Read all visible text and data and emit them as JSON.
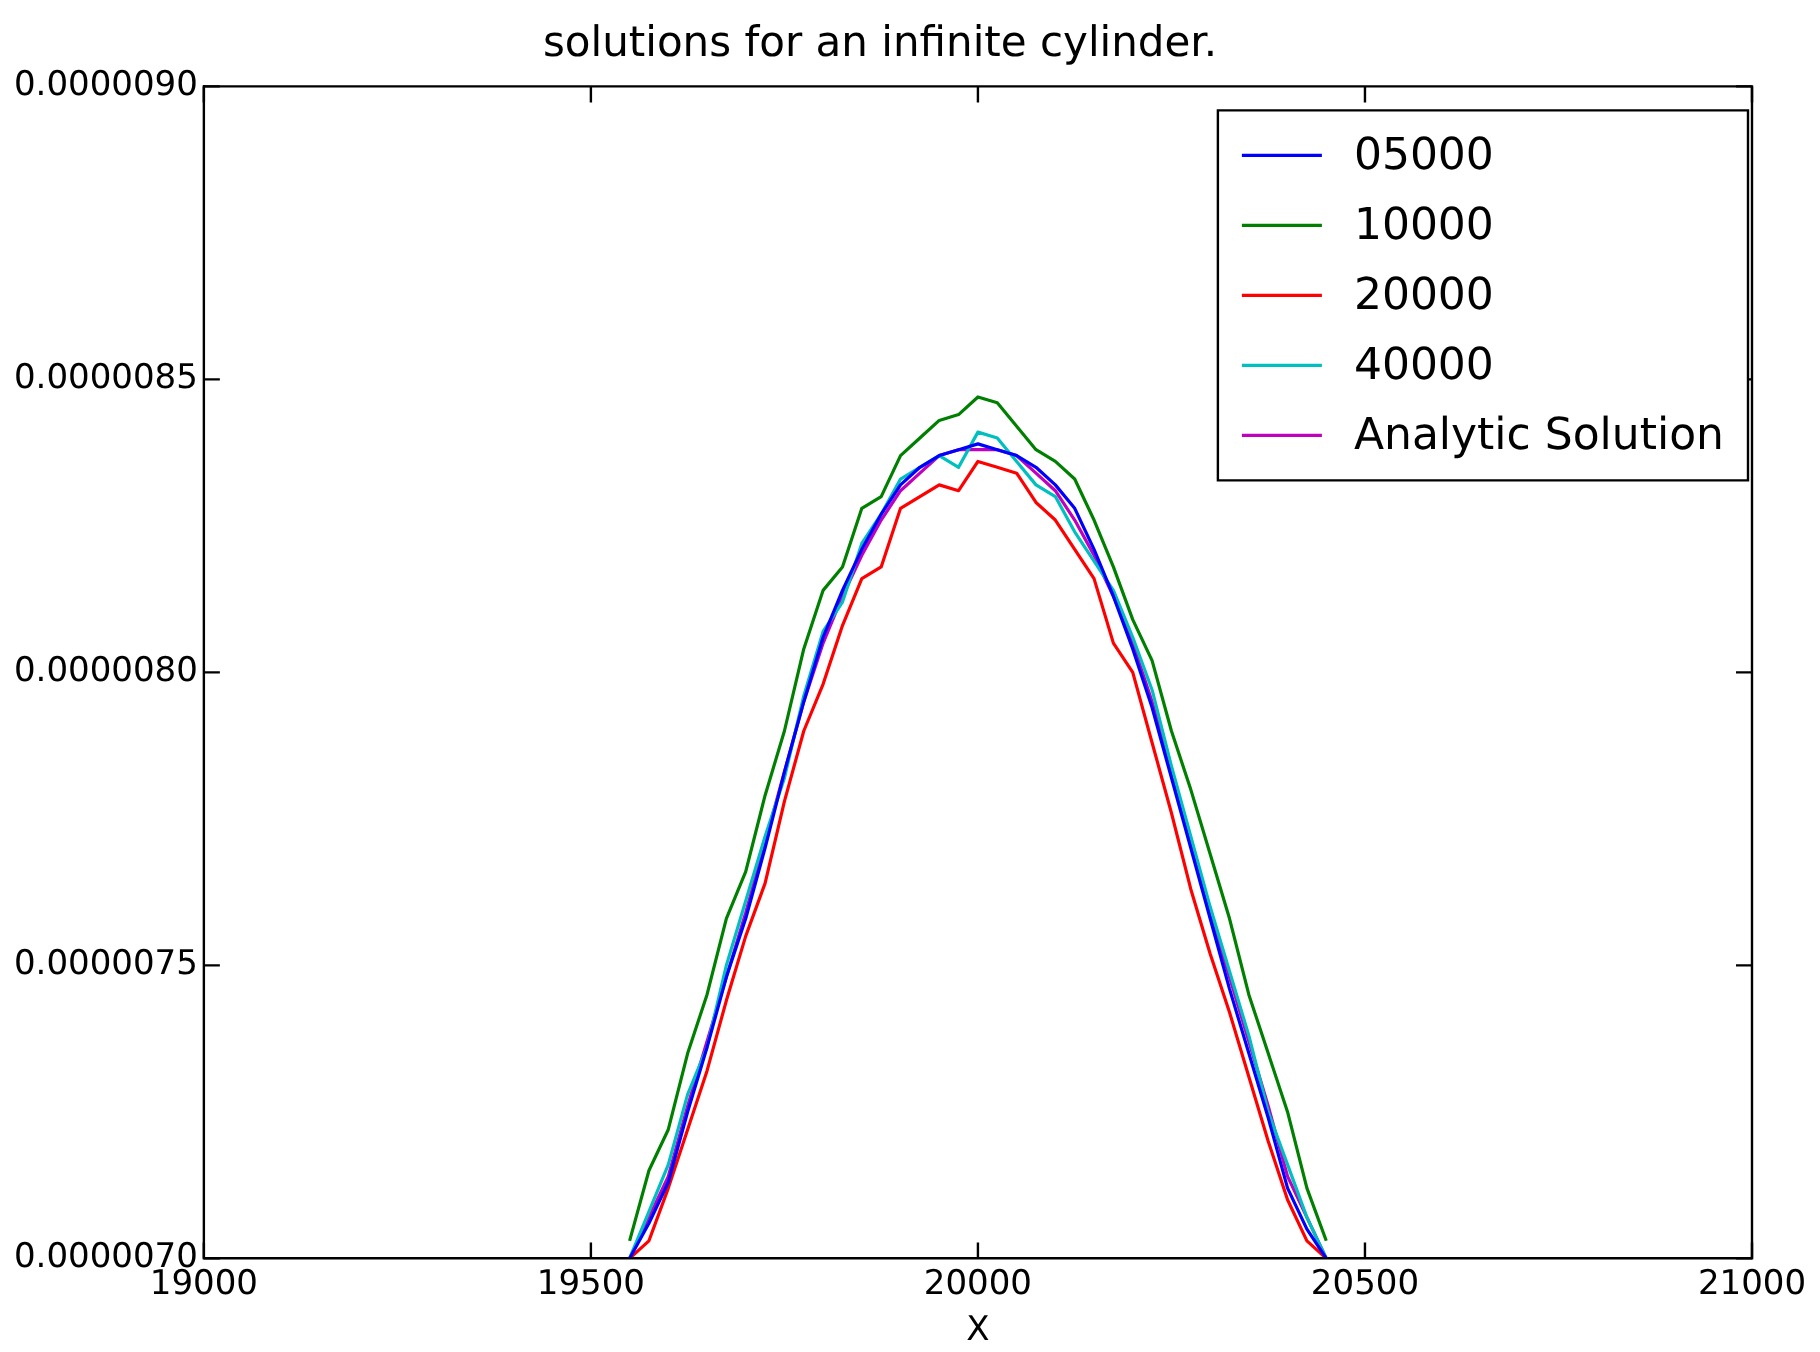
{
  "chart_data": {
    "type": "line",
    "title": "solutions for an infinite cylinder.",
    "xlabel": "X",
    "x": [
      19550,
      19575,
      19600,
      19625,
      19650,
      19675,
      19700,
      19725,
      19750,
      19775,
      19800,
      19825,
      19850,
      19875,
      19900,
      19925,
      19950,
      19975,
      20000,
      20025,
      20050,
      20075,
      20100,
      20125,
      20150,
      20175,
      20200,
      20225,
      20250,
      20275,
      20300,
      20325,
      20350,
      20375,
      20400,
      20425,
      20450
    ],
    "series": [
      {
        "name": "05000",
        "color": "#0000ff",
        "values": [
          7e-06,
          7.06e-06,
          7.13e-06,
          7.25e-06,
          7.36e-06,
          7.48e-06,
          7.58e-06,
          7.7e-06,
          7.83e-06,
          7.95e-06,
          8.06e-06,
          8.14e-06,
          8.21e-06,
          8.27e-06,
          8.32e-06,
          8.35e-06,
          8.37e-06,
          8.38e-06,
          8.39e-06,
          8.38e-06,
          8.37e-06,
          8.35e-06,
          8.32e-06,
          8.28e-06,
          8.21e-06,
          8.13e-06,
          8.04e-06,
          7.94e-06,
          7.82e-06,
          7.7e-06,
          7.58e-06,
          7.46e-06,
          7.35e-06,
          7.24e-06,
          7.12e-06,
          7.05e-06,
          7e-06
        ]
      },
      {
        "name": "10000",
        "color": "#008000",
        "values": [
          7.03e-06,
          7.15e-06,
          7.22e-06,
          7.35e-06,
          7.45e-06,
          7.58e-06,
          7.66e-06,
          7.79e-06,
          7.9e-06,
          8.04e-06,
          8.14e-06,
          8.18e-06,
          8.28e-06,
          8.3e-06,
          8.37e-06,
          8.4e-06,
          8.43e-06,
          8.44e-06,
          8.47e-06,
          8.46e-06,
          8.42e-06,
          8.38e-06,
          8.36e-06,
          8.33e-06,
          8.26e-06,
          8.18e-06,
          8.09e-06,
          8.02e-06,
          7.9e-06,
          7.8e-06,
          7.69e-06,
          7.58e-06,
          7.45e-06,
          7.35e-06,
          7.25e-06,
          7.12e-06,
          7.03e-06
        ]
      },
      {
        "name": "20000",
        "color": "#ff0000",
        "values": [
          7e-06,
          7.03e-06,
          7.12e-06,
          7.22e-06,
          7.32e-06,
          7.44e-06,
          7.55e-06,
          7.64e-06,
          7.78e-06,
          7.9e-06,
          7.98e-06,
          8.08e-06,
          8.16e-06,
          8.18e-06,
          8.28e-06,
          8.3e-06,
          8.32e-06,
          8.31e-06,
          8.36e-06,
          8.35e-06,
          8.34e-06,
          8.29e-06,
          8.26e-06,
          8.21e-06,
          8.16e-06,
          8.05e-06,
          8e-06,
          7.88e-06,
          7.76e-06,
          7.63e-06,
          7.52e-06,
          7.42e-06,
          7.31e-06,
          7.2e-06,
          7.1e-06,
          7.03e-06,
          7e-06
        ]
      },
      {
        "name": "40000",
        "color": "#00bfbf",
        "values": [
          7e-06,
          7.08e-06,
          7.16e-06,
          7.28e-06,
          7.36e-06,
          7.5e-06,
          7.61e-06,
          7.72e-06,
          7.82e-06,
          7.96e-06,
          8.07e-06,
          8.12e-06,
          8.22e-06,
          8.27e-06,
          8.33e-06,
          8.35e-06,
          8.37e-06,
          8.35e-06,
          8.41e-06,
          8.4e-06,
          8.36e-06,
          8.32e-06,
          8.3e-06,
          8.24e-06,
          8.19e-06,
          8.14e-06,
          8.06e-06,
          7.97e-06,
          7.84e-06,
          7.72e-06,
          7.6e-06,
          7.49e-06,
          7.38e-06,
          7.25e-06,
          7.16e-06,
          7.07e-06,
          7e-06
        ]
      },
      {
        "name": "Analytic Solution",
        "color": "#bf00bf",
        "values": [
          7e-06,
          7.07e-06,
          7.14e-06,
          7.26e-06,
          7.37e-06,
          7.48e-06,
          7.59e-06,
          7.71e-06,
          7.83e-06,
          7.95e-06,
          8.05e-06,
          8.13e-06,
          8.2e-06,
          8.26e-06,
          8.31e-06,
          8.34e-06,
          8.37e-06,
          8.38e-06,
          8.38e-06,
          8.38e-06,
          8.37e-06,
          8.34e-06,
          8.31e-06,
          8.26e-06,
          8.2e-06,
          8.13e-06,
          8.05e-06,
          7.95e-06,
          7.83e-06,
          7.71e-06,
          7.59e-06,
          7.48e-06,
          7.37e-06,
          7.26e-06,
          7.14e-06,
          7.07e-06,
          7e-06
        ]
      }
    ],
    "xlim": [
      19000,
      21000
    ],
    "xticks": [
      19000,
      19500,
      20000,
      20500,
      21000
    ],
    "ylim": [
      7e-06,
      9e-06
    ],
    "yticks": [
      {
        "value": 7e-06,
        "label": "0.0000070"
      },
      {
        "value": 7.5e-06,
        "label": "0.0000075"
      },
      {
        "value": 8e-06,
        "label": "0.0000080"
      },
      {
        "value": 8.5e-06,
        "label": "0.0000085"
      },
      {
        "value": 9e-06,
        "label": "0.0000090"
      }
    ],
    "grid": false,
    "legend": "top right",
    "marker": "none",
    "line_style": "solid"
  }
}
